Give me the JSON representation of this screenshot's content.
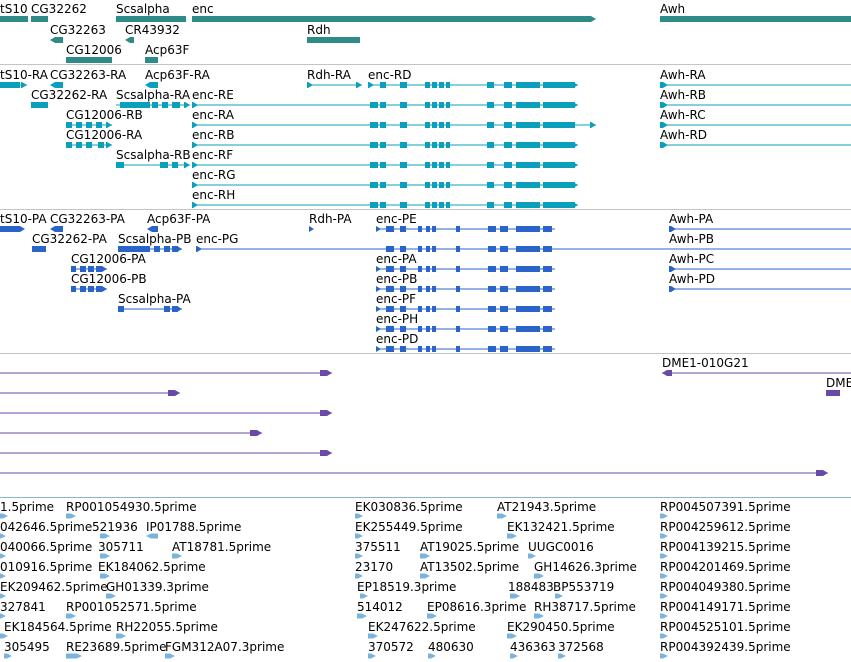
{
  "colors": {
    "gene": "#2e8b87",
    "transcript_flybase": "#0aa0bb",
    "transcript_other": "#2a64c8",
    "clone": "#6a4aa6",
    "est": "#7ab4dc",
    "separator": "#c4c4c4"
  },
  "tracks": {
    "genes": [
      "CG32262",
      "CG32263",
      "Scsalpha",
      "CR43932",
      "CG12006",
      "Acp63F",
      "enc",
      "Rdh",
      "Awh"
    ],
    "gene_partial": "tS10",
    "flybase_transcripts": [
      "tS10-RA",
      "CG32263-RA",
      "Acp63F-RA",
      "Rdh-RA",
      "enc-RD",
      "CG32262-RA",
      "Scsalpha-RA",
      "enc-RE",
      "CG12006-RB",
      "enc-RA",
      "CG12006-RA",
      "enc-RB",
      "Scsalpha-RB",
      "enc-RF",
      "enc-RG",
      "enc-RH",
      "Awh-RA",
      "Awh-RB",
      "Awh-RC",
      "Awh-RD"
    ],
    "other_transcripts": [
      "tS10-PA",
      "CG32263-PA",
      "Acp63F-PA",
      "Rdh-PA",
      "enc-PE",
      "CG32262-PA",
      "Scsalpha-PB",
      "enc-PG",
      "CG12006-PA",
      "enc-PA",
      "CG12006-PB",
      "enc-PB",
      "Scsalpha-PA",
      "enc-PF",
      "enc-PH",
      "enc-PD",
      "Awh-PA",
      "Awh-PB",
      "Awh-PC",
      "Awh-PD"
    ],
    "clones": [
      "DME1-010G21",
      "DME"
    ],
    "ests": [
      "1.5prime",
      "RP001054930.5prime",
      "EK030836.5prime",
      "AT21943.5prime",
      "RP004507391.5prime",
      "042646.5prime",
      "521936",
      "IP01788.5prime",
      "EK255449.5prime",
      "EK132421.5prime",
      "RP004259612.5prime",
      "040066.5prime",
      "305711",
      "AT18781.5prime",
      "375511",
      "AT19025.5prime",
      "UUGC0016",
      "RP004139215.5prime",
      "010916.5prime",
      "EK184062.5prime",
      "23170",
      "AT13502.5prime",
      "GH14626.3prime",
      "RP004201469.5prime",
      "EK209462.5prime",
      "GH01339.3prime",
      "EP18519.3prime",
      "188483",
      "BP553719",
      "RP004049380.5prime",
      "327841",
      "RP001052571.5prime",
      "514012",
      "EP08616.3prime",
      "RH38717.5prime",
      "RP004149171.5prime",
      "EK184564.5prime",
      "RH22055.5prime",
      "EK247622.5prime",
      "EK290450.5prime",
      "RP004525101.5prime",
      "305495",
      "RE23689.5prime",
      "FGM312A07.3prime",
      "370572",
      "480630",
      "436363",
      "372568",
      "RP004392439.5prime"
    ]
  }
}
